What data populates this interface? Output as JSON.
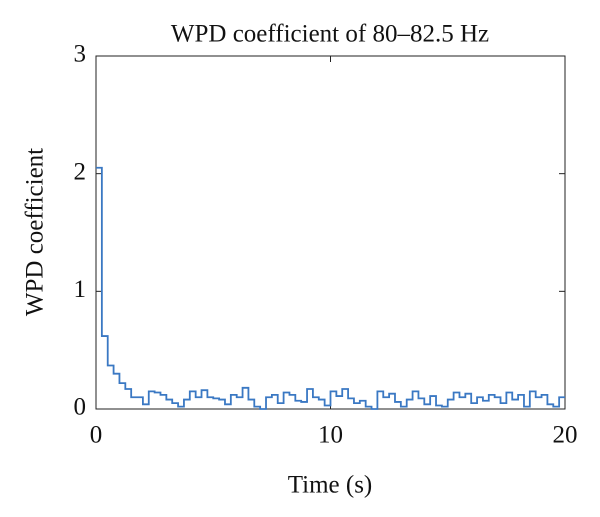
{
  "chart_data": {
    "type": "step",
    "title": "WPD coefficient of 80–82.5 Hz",
    "xlabel": "Time (s)",
    "ylabel": "WPD coefficient",
    "x": [
      0,
      0.25,
      0.5,
      0.75,
      1,
      1.25,
      1.5,
      1.75,
      2,
      2.25,
      2.5,
      2.75,
      3,
      3.25,
      3.5,
      3.75,
      4,
      4.25,
      4.5,
      4.75,
      5,
      5.25,
      5.5,
      5.75,
      6,
      6.25,
      6.5,
      6.75,
      7,
      7.25,
      7.5,
      7.75,
      8,
      8.25,
      8.5,
      8.75,
      9,
      9.25,
      9.5,
      9.75,
      10,
      10.25,
      10.5,
      10.75,
      11,
      11.25,
      11.5,
      11.75,
      12,
      12.25,
      12.5,
      12.75,
      13,
      13.25,
      13.5,
      13.75,
      14,
      14.25,
      14.5,
      14.75,
      15,
      15.25,
      15.5,
      15.75,
      16,
      16.25,
      16.5,
      16.75,
      17,
      17.25,
      17.5,
      17.75,
      18,
      18.25,
      18.5,
      18.75,
      19,
      19.25,
      19.5,
      19.75,
      20
    ],
    "series": [
      {
        "color": "#3a78c3",
        "values": [
          2.05,
          0.62,
          0.37,
          0.3,
          0.22,
          0.17,
          0.1,
          0.1,
          0.04,
          0.15,
          0.14,
          0.12,
          0.08,
          0.05,
          0.02,
          0.08,
          0.15,
          0.1,
          0.16,
          0.1,
          0.09,
          0.08,
          0.04,
          0.12,
          0.1,
          0.18,
          0.08,
          0.02,
          0.0,
          0.1,
          0.12,
          0.05,
          0.14,
          0.12,
          0.07,
          0.06,
          0.17,
          0.1,
          0.08,
          0.03,
          0.15,
          0.11,
          0.17,
          0.09,
          0.05,
          0.07,
          0.02,
          0.0,
          0.15,
          0.1,
          0.13,
          0.06,
          0.02,
          0.08,
          0.15,
          0.09,
          0.04,
          0.11,
          0.03,
          0.02,
          0.08,
          0.14,
          0.1,
          0.13,
          0.05,
          0.1,
          0.07,
          0.12,
          0.1,
          0.05,
          0.14,
          0.08,
          0.12,
          0.02,
          0.15,
          0.1,
          0.12,
          0.04,
          0.02,
          0.1,
          0.1
        ]
      }
    ],
    "xlim": [
      0,
      20
    ],
    "xticks": [
      0,
      10,
      20
    ],
    "ylim": [
      0,
      3
    ],
    "yticks": [
      0,
      1,
      2,
      3
    ]
  }
}
